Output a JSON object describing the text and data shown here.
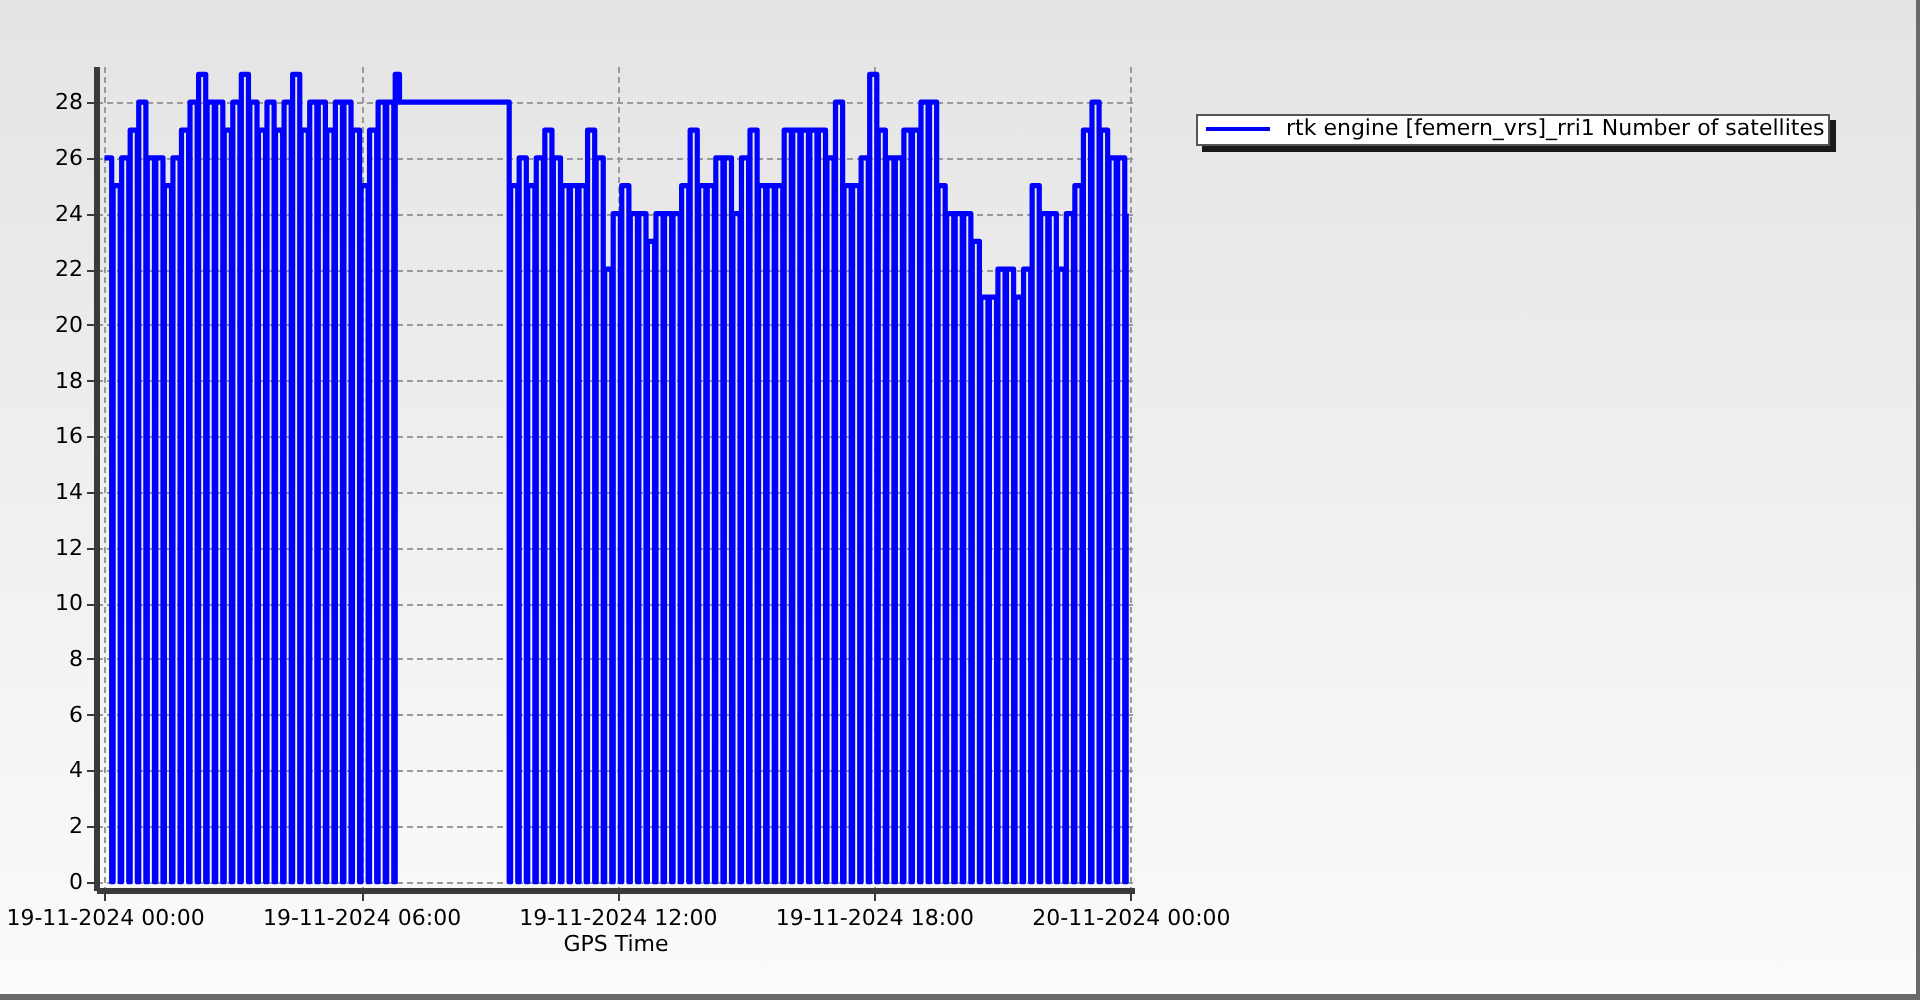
{
  "chart_data": {
    "type": "step",
    "xlabel": "GPS Time",
    "x": [
      "2024-11-19T00:00",
      "2024-11-19T00:10",
      "2024-11-19T00:12",
      "2024-11-19T00:22",
      "2024-11-19T00:24",
      "2024-11-19T00:34",
      "2024-11-19T00:36",
      "2024-11-19T00:46",
      "2024-11-19T00:48",
      "2024-11-19T00:58",
      "2024-11-19T01:00",
      "2024-11-19T01:10",
      "2024-11-19T01:12",
      "2024-11-19T01:22",
      "2024-11-19T01:24",
      "2024-11-19T01:34",
      "2024-11-19T01:36",
      "2024-11-19T01:46",
      "2024-11-19T01:48",
      "2024-11-19T01:58",
      "2024-11-19T02:00",
      "2024-11-19T02:10",
      "2024-11-19T02:12",
      "2024-11-19T02:22",
      "2024-11-19T02:24",
      "2024-11-19T02:34",
      "2024-11-19T02:36",
      "2024-11-19T02:46",
      "2024-11-19T02:48",
      "2024-11-19T02:58",
      "2024-11-19T03:00",
      "2024-11-19T03:10",
      "2024-11-19T03:12",
      "2024-11-19T03:22",
      "2024-11-19T03:24",
      "2024-11-19T03:34",
      "2024-11-19T03:36",
      "2024-11-19T03:46",
      "2024-11-19T03:48",
      "2024-11-19T03:58",
      "2024-11-19T04:00",
      "2024-11-19T04:10",
      "2024-11-19T04:12",
      "2024-11-19T04:22",
      "2024-11-19T04:24",
      "2024-11-19T04:34",
      "2024-11-19T04:36",
      "2024-11-19T04:46",
      "2024-11-19T04:48",
      "2024-11-19T04:58",
      "2024-11-19T05:00",
      "2024-11-19T05:10",
      "2024-11-19T05:12",
      "2024-11-19T05:22",
      "2024-11-19T05:24",
      "2024-11-19T05:34",
      "2024-11-19T05:36",
      "2024-11-19T05:46",
      "2024-11-19T05:48",
      "2024-11-19T05:58",
      "2024-11-19T06:00",
      "2024-11-19T06:10",
      "2024-11-19T06:12",
      "2024-11-19T06:22",
      "2024-11-19T06:24",
      "2024-11-19T06:34",
      "2024-11-19T06:36",
      "2024-11-19T06:46",
      "2024-11-19T06:48",
      "2024-11-19T06:54",
      "2024-11-19T09:18",
      "2024-11-19T09:28",
      "2024-11-19T09:30",
      "2024-11-19T09:40",
      "2024-11-19T09:42",
      "2024-11-19T09:52",
      "2024-11-19T09:54",
      "2024-11-19T10:04",
      "2024-11-19T10:06",
      "2024-11-19T10:16",
      "2024-11-19T10:18",
      "2024-11-19T10:28",
      "2024-11-19T10:30",
      "2024-11-19T10:40",
      "2024-11-19T10:42",
      "2024-11-19T10:52",
      "2024-11-19T10:54",
      "2024-11-19T11:04",
      "2024-11-19T11:06",
      "2024-11-19T11:16",
      "2024-11-19T11:18",
      "2024-11-19T11:28",
      "2024-11-19T11:30",
      "2024-11-19T11:40",
      "2024-11-19T11:42",
      "2024-11-19T11:52",
      "2024-11-19T11:54",
      "2024-11-19T12:04",
      "2024-11-19T12:06",
      "2024-11-19T12:16",
      "2024-11-19T12:18",
      "2024-11-19T12:28",
      "2024-11-19T12:30",
      "2024-11-19T12:40",
      "2024-11-19T12:42",
      "2024-11-19T12:52",
      "2024-11-19T12:54",
      "2024-11-19T13:04",
      "2024-11-19T13:06",
      "2024-11-19T13:16",
      "2024-11-19T13:18",
      "2024-11-19T13:28",
      "2024-11-19T13:30",
      "2024-11-19T13:40",
      "2024-11-19T13:42",
      "2024-11-19T13:52",
      "2024-11-19T13:54",
      "2024-11-19T14:04",
      "2024-11-19T14:06",
      "2024-11-19T14:16",
      "2024-11-19T14:18",
      "2024-11-19T14:28",
      "2024-11-19T14:30",
      "2024-11-19T14:40",
      "2024-11-19T14:42",
      "2024-11-19T14:52",
      "2024-11-19T14:54",
      "2024-11-19T15:04",
      "2024-11-19T15:06",
      "2024-11-19T15:16",
      "2024-11-19T15:18",
      "2024-11-19T15:28",
      "2024-11-19T15:30",
      "2024-11-19T15:40",
      "2024-11-19T15:42",
      "2024-11-19T15:52",
      "2024-11-19T15:54",
      "2024-11-19T16:04",
      "2024-11-19T16:06",
      "2024-11-19T16:16",
      "2024-11-19T16:18",
      "2024-11-19T16:28",
      "2024-11-19T16:30",
      "2024-11-19T16:40",
      "2024-11-19T16:42",
      "2024-11-19T16:52",
      "2024-11-19T16:54",
      "2024-11-19T17:04",
      "2024-11-19T17:06",
      "2024-11-19T17:16",
      "2024-11-19T17:18",
      "2024-11-19T17:28",
      "2024-11-19T17:30",
      "2024-11-19T17:40",
      "2024-11-19T17:42",
      "2024-11-19T17:52",
      "2024-11-19T17:54",
      "2024-11-19T18:04",
      "2024-11-19T18:06",
      "2024-11-19T18:16",
      "2024-11-19T18:18",
      "2024-11-19T18:28",
      "2024-11-19T18:30",
      "2024-11-19T18:40",
      "2024-11-19T18:42",
      "2024-11-19T18:52",
      "2024-11-19T18:54",
      "2024-11-19T19:04",
      "2024-11-19T19:06",
      "2024-11-19T19:16",
      "2024-11-19T19:18",
      "2024-11-19T19:28",
      "2024-11-19T19:30",
      "2024-11-19T19:40",
      "2024-11-19T19:42",
      "2024-11-19T19:52",
      "2024-11-19T19:54",
      "2024-11-19T20:04",
      "2024-11-19T20:06",
      "2024-11-19T20:16",
      "2024-11-19T20:18",
      "2024-11-19T20:28",
      "2024-11-19T20:30",
      "2024-11-19T20:40",
      "2024-11-19T20:42",
      "2024-11-19T20:52",
      "2024-11-19T20:54",
      "2024-11-19T21:04",
      "2024-11-19T21:06",
      "2024-11-19T21:16",
      "2024-11-19T21:18",
      "2024-11-19T21:28",
      "2024-11-19T21:30",
      "2024-11-19T21:40",
      "2024-11-19T21:42",
      "2024-11-19T21:52",
      "2024-11-19T21:54",
      "2024-11-19T22:04",
      "2024-11-19T22:06",
      "2024-11-19T22:16",
      "2024-11-19T22:18",
      "2024-11-19T22:28",
      "2024-11-19T22:30",
      "2024-11-19T22:40",
      "2024-11-19T22:42",
      "2024-11-19T22:52",
      "2024-11-19T22:54",
      "2024-11-19T23:04",
      "2024-11-19T23:06",
      "2024-11-19T23:16",
      "2024-11-19T23:18",
      "2024-11-19T23:28",
      "2024-11-19T23:30",
      "2024-11-19T23:40",
      "2024-11-19T23:42",
      "2024-11-19T23:52",
      "2024-11-19T23:54"
    ],
    "series": [
      {
        "name": "rtk engine [femern_vrs]_rri1 Number of satellites",
        "color": "#0000ff",
        "values": [
          26,
          0,
          25,
          0,
          26,
          0,
          27,
          0,
          28,
          0,
          26,
          0,
          26,
          0,
          25,
          0,
          26,
          0,
          27,
          0,
          28,
          0,
          29,
          0,
          28,
          0,
          28,
          0,
          27,
          0,
          28,
          0,
          29,
          0,
          28,
          0,
          27,
          0,
          28,
          0,
          27,
          0,
          28,
          0,
          29,
          0,
          27,
          0,
          28,
          0,
          28,
          0,
          27,
          0,
          28,
          0,
          28,
          0,
          27,
          0,
          25,
          0,
          27,
          0,
          28,
          0,
          28,
          0,
          29,
          28,
          28,
          0,
          25,
          0,
          26,
          0,
          25,
          0,
          26,
          0,
          27,
          0,
          26,
          0,
          25,
          0,
          25,
          0,
          25,
          0,
          27,
          0,
          26,
          0,
          22,
          0,
          24,
          0,
          25,
          0,
          24,
          0,
          24,
          0,
          23,
          0,
          24,
          0,
          24,
          0,
          24,
          0,
          25,
          0,
          27,
          0,
          25,
          0,
          25,
          0,
          26,
          0,
          26,
          0,
          24,
          0,
          26,
          0,
          27,
          0,
          25,
          0,
          25,
          0,
          25,
          0,
          27,
          0,
          27,
          0,
          27,
          0,
          27,
          0,
          27,
          0,
          26,
          0,
          28,
          0,
          25,
          0,
          25,
          0,
          26,
          0,
          29,
          0,
          27,
          0,
          26,
          0,
          26,
          0,
          27,
          0,
          27,
          0,
          28,
          0,
          28,
          0,
          25,
          0,
          24,
          0,
          24,
          0,
          24,
          0,
          23,
          0,
          21,
          0,
          21,
          0,
          22,
          0,
          22,
          0,
          21,
          0,
          22,
          0,
          25,
          0,
          24,
          0,
          24,
          0,
          22,
          0,
          24,
          0,
          25,
          0,
          27,
          0,
          28,
          0,
          27,
          0,
          26,
          0,
          26,
          0,
          24
        ]
      }
    ],
    "xlim": [
      "2024-11-18T23:48",
      "2024-11-20T00:05"
    ],
    "xticks": [
      {
        "value": "2024-11-19T00:00",
        "label": "19-11-2024 00:00"
      },
      {
        "value": "2024-11-19T06:00",
        "label": "19-11-2024 06:00"
      },
      {
        "value": "2024-11-19T12:00",
        "label": "19-11-2024 12:00"
      },
      {
        "value": "2024-11-19T18:00",
        "label": "19-11-2024 18:00"
      },
      {
        "value": "2024-11-20T00:00",
        "label": "20-11-2024 00:00"
      }
    ],
    "ylim": [
      -0.3,
      29.3
    ],
    "yticks": [
      0,
      2,
      4,
      6,
      8,
      10,
      12,
      14,
      16,
      18,
      20,
      22,
      24,
      26,
      28
    ],
    "grid": true,
    "legend": "top right",
    "line_style": "solid"
  }
}
